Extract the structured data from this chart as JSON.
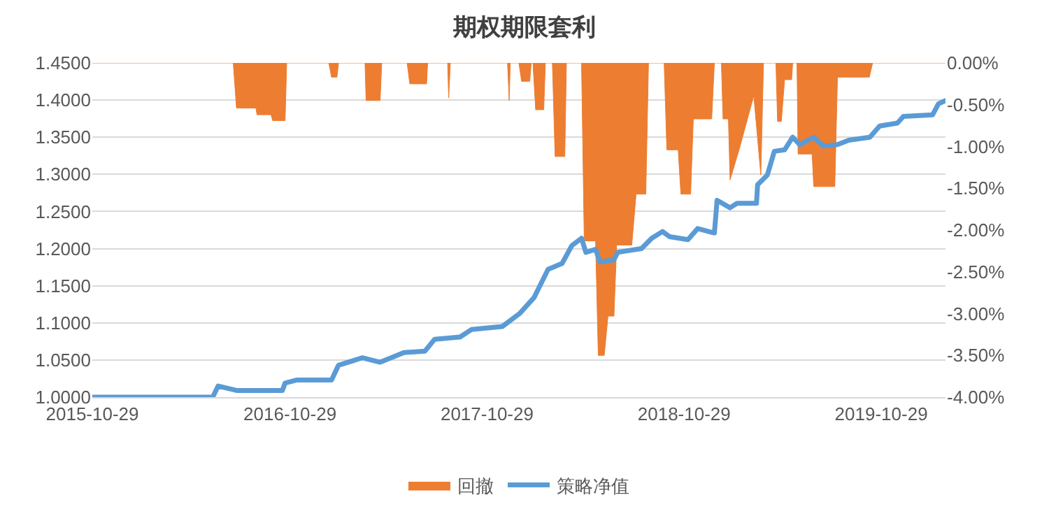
{
  "chart_data": {
    "type": "line",
    "title": "期权期限套利",
    "xlim": [
      "2015-10-29",
      "2020-02-25"
    ],
    "xticks": [
      "2015-10-29",
      "2016-10-29",
      "2017-10-29",
      "2018-10-29",
      "2019-10-29"
    ],
    "ylim": [
      1.0,
      1.45
    ],
    "yticks": [
      {
        "value": 1.0,
        "label": "1.0000"
      },
      {
        "value": 1.05,
        "label": "1.0500"
      },
      {
        "value": 1.1,
        "label": "1.1000"
      },
      {
        "value": 1.15,
        "label": "1.1500"
      },
      {
        "value": 1.2,
        "label": "1.2000"
      },
      {
        "value": 1.25,
        "label": "1.2500"
      },
      {
        "value": 1.3,
        "label": "1.3000"
      },
      {
        "value": 1.35,
        "label": "1.3500"
      },
      {
        "value": 1.4,
        "label": "1.4000"
      },
      {
        "value": 1.45,
        "label": "1.4500"
      }
    ],
    "y2lim": [
      -4,
      0
    ],
    "y2ticks": [
      {
        "value": -4,
        "label": "-4.00%"
      },
      {
        "value": -3.5,
        "label": "-3.50%"
      },
      {
        "value": -3,
        "label": "-3.00%"
      },
      {
        "value": -2.5,
        "label": "-2.50%"
      },
      {
        "value": -2,
        "label": "-2.00%"
      },
      {
        "value": -1.5,
        "label": "-1.50%"
      },
      {
        "value": -1,
        "label": "-1.00%"
      },
      {
        "value": -0.5,
        "label": "-0.50%"
      },
      {
        "value": 0,
        "label": "0.00%"
      }
    ],
    "grid": "y",
    "legend": "bottom",
    "series": [
      {
        "name": "回撤",
        "type": "area",
        "axis": "y2",
        "color": "#ed7d31",
        "x": [
          "2015-10-29",
          "2016-07-16",
          "2016-07-22",
          "2016-08-27",
          "2016-08-29",
          "2016-09-24",
          "2016-09-27",
          "2016-10-20",
          "2016-10-23",
          "2017-01-09",
          "2017-01-14",
          "2017-01-24",
          "2017-01-27",
          "2017-03-17",
          "2017-03-19",
          "2017-04-14",
          "2017-04-17",
          "2017-06-03",
          "2017-06-08",
          "2017-07-09",
          "2017-07-11",
          "2017-08-17",
          "2017-08-19",
          "2017-08-22",
          "2017-12-06",
          "2017-12-09",
          "2017-12-11",
          "2017-12-27",
          "2018-01-01",
          "2018-01-16",
          "2018-01-19",
          "2018-01-22",
          "2018-01-27",
          "2018-02-11",
          "2018-02-14",
          "2018-02-27",
          "2018-03-04",
          "2018-03-22",
          "2018-03-25",
          "2018-04-22",
          "2018-04-27",
          "2018-05-18",
          "2018-05-23",
          "2018-06-03",
          "2018-06-10",
          "2018-06-21",
          "2018-06-26",
          "2018-07-24",
          "2018-08-01",
          "2018-08-19",
          "2018-08-24",
          "2018-09-22",
          "2018-09-27",
          "2018-10-18",
          "2018-10-23",
          "2018-11-10",
          "2018-11-15",
          "2018-12-19",
          "2018-12-24",
          "2019-01-06",
          "2019-01-09",
          "2019-01-19",
          "2019-01-22",
          "2019-02-09",
          "2019-03-07",
          "2019-03-20",
          "2019-03-25",
          "2019-04-17",
          "2019-04-20",
          "2019-04-27",
          "2019-05-03",
          "2019-05-16",
          "2019-05-18",
          "2019-05-26",
          "2019-05-28",
          "2019-06-23",
          "2019-06-26",
          "2019-08-04",
          "2019-08-09",
          "2019-10-07",
          "2019-10-13",
          "2020-02-24"
        ],
        "values": [
          0,
          0,
          -0.54,
          -0.54,
          -0.62,
          -0.62,
          -0.69,
          -0.69,
          0,
          0,
          -0.17,
          -0.17,
          0,
          0,
          -0.45,
          -0.45,
          0,
          0,
          -0.25,
          -0.25,
          0,
          0,
          -0.42,
          0,
          0,
          -0.45,
          0,
          0,
          -0.22,
          -0.22,
          0,
          0,
          -0.56,
          -0.56,
          0,
          0,
          -1.12,
          -1.12,
          0,
          0,
          -2.13,
          -2.13,
          -3.5,
          -3.5,
          -3.03,
          -3.03,
          -2.18,
          -2.18,
          -1.57,
          -1.57,
          0,
          0,
          -1.04,
          -1.04,
          -1.57,
          -1.57,
          -0.67,
          -0.67,
          0,
          0,
          -0.67,
          -0.67,
          -1.4,
          -1.01,
          -0.39,
          -1.34,
          0,
          0,
          -0.7,
          -0.7,
          -0.2,
          -0.2,
          0,
          0,
          -1.09,
          -1.09,
          -1.48,
          -1.48,
          -0.17,
          -0.17,
          0,
          0
        ]
      },
      {
        "name": "策略净值",
        "type": "line",
        "color": "#5b9bd5",
        "x": [
          "2015-10-29",
          "2016-06-08",
          "2016-06-18",
          "2016-07-22",
          "2016-10-15",
          "2016-10-20",
          "2016-11-10",
          "2017-01-14",
          "2017-01-27",
          "2017-03-12",
          "2017-04-14",
          "2017-05-28",
          "2017-07-06",
          "2017-07-24",
          "2017-09-09",
          "2017-09-30",
          "2017-11-26",
          "2017-12-29",
          "2018-01-24",
          "2018-02-19",
          "2018-03-17",
          "2018-04-04",
          "2018-04-22",
          "2018-04-30",
          "2018-05-18",
          "2018-05-26",
          "2018-06-21",
          "2018-06-28",
          "2018-08-11",
          "2018-08-30",
          "2018-09-19",
          "2018-10-02",
          "2018-11-05",
          "2018-11-23",
          "2018-12-24",
          "2018-12-29",
          "2019-01-22",
          "2019-02-04",
          "2019-03-12",
          "2019-03-14",
          "2019-04-01",
          "2019-04-14",
          "2019-05-03",
          "2019-05-18",
          "2019-05-31",
          "2019-06-26",
          "2019-07-14",
          "2019-08-09",
          "2019-08-30",
          "2019-10-08",
          "2019-10-26",
          "2019-11-28",
          "2019-12-09",
          "2020-02-01",
          "2020-02-12",
          "2020-02-24"
        ],
        "values": [
          1.0,
          1.0,
          1.015,
          1.009,
          1.009,
          1.019,
          1.023,
          1.023,
          1.043,
          1.053,
          1.047,
          1.06,
          1.062,
          1.078,
          1.081,
          1.091,
          1.095,
          1.113,
          1.134,
          1.172,
          1.18,
          1.204,
          1.214,
          1.195,
          1.199,
          1.182,
          1.185,
          1.195,
          1.2,
          1.214,
          1.223,
          1.216,
          1.212,
          1.227,
          1.221,
          1.265,
          1.255,
          1.261,
          1.261,
          1.286,
          1.299,
          1.331,
          1.333,
          1.35,
          1.34,
          1.35,
          1.338,
          1.34,
          1.346,
          1.35,
          1.365,
          1.369,
          1.378,
          1.38,
          1.395,
          1.399
        ]
      }
    ]
  }
}
